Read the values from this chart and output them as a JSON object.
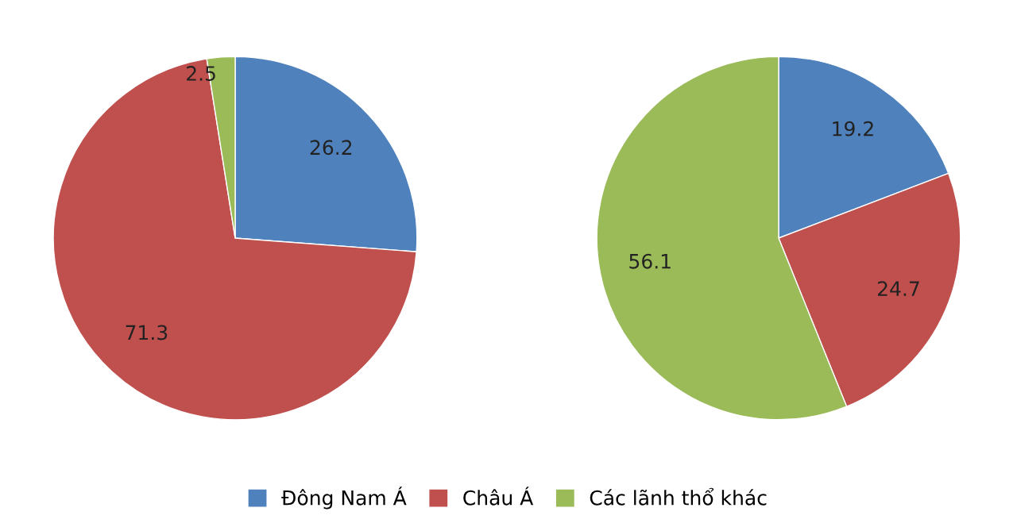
{
  "chart_data": [
    {
      "type": "pie",
      "values": [
        26.2,
        71.3,
        2.5
      ],
      "colors": [
        "#4f81bd",
        "#c0504d",
        "#9bbb59"
      ],
      "data_labels": true
    },
    {
      "type": "pie",
      "categories": [
        "Đông Nam Á",
        "Châu Á",
        "Các lãnh thổ khác"
      ],
      "values": [
        19.2,
        24.7,
        56.1
      ],
      "colors": [
        "#4f81bd",
        "#c0504d",
        "#9bbb59"
      ],
      "data_labels": true,
      "legend": "bottom"
    }
  ]
}
